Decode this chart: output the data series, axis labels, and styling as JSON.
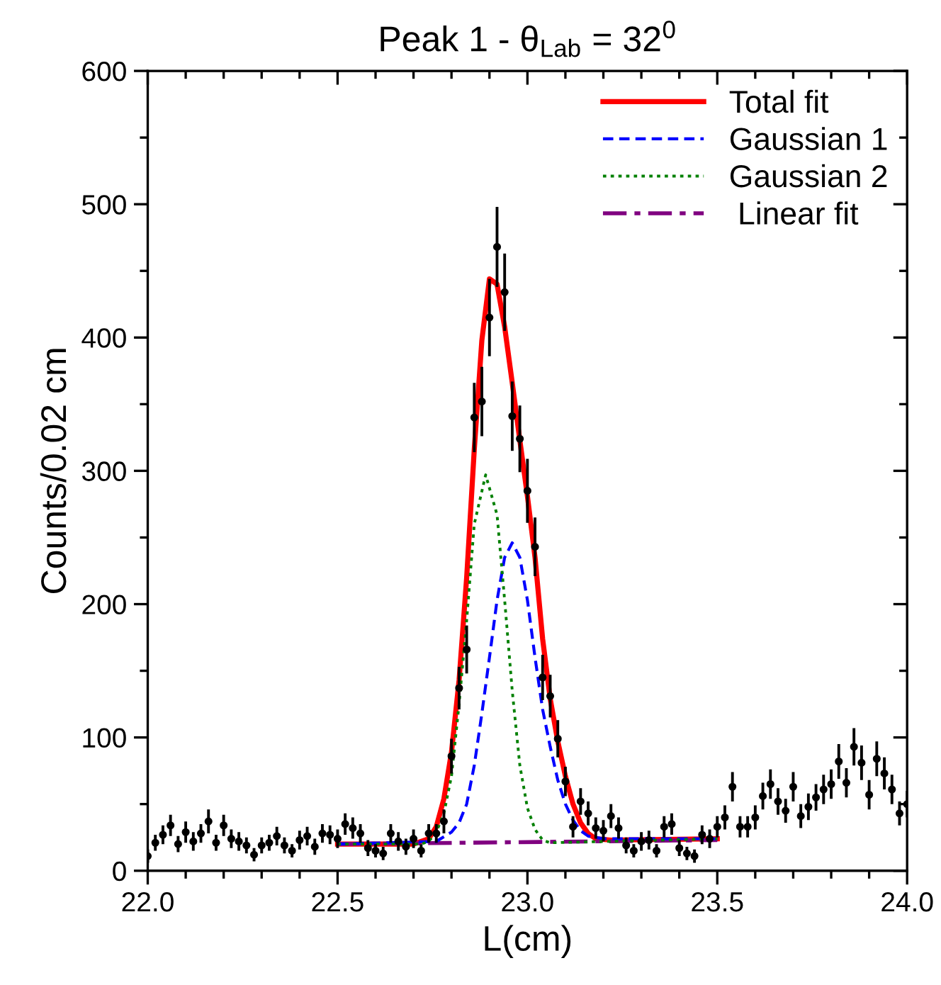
{
  "chart_data": {
    "type": "scatter",
    "title": "Peak 1 - θ$_{Lab}$ = 32$^{0}$",
    "xlabel": "L(cm)",
    "ylabel": "Counts/0.02 cm",
    "xlim": [
      22.0,
      24.0
    ],
    "ylim": [
      0,
      600
    ],
    "xticks": [
      {
        "value": 22.0,
        "label": "22.0"
      },
      {
        "value": 22.1,
        "label": null
      },
      {
        "value": 22.2,
        "label": null
      },
      {
        "value": 22.3,
        "label": null
      },
      {
        "value": 22.4,
        "label": null
      },
      22.5,
      {
        "value": 22.6,
        "label": null
      },
      {
        "value": 22.7,
        "label": null
      },
      {
        "value": 22.8,
        "label": null
      },
      {
        "value": 22.9,
        "label": null
      },
      {
        "value": 23.0,
        "label": "23.0"
      },
      {
        "value": 23.1,
        "label": null
      },
      {
        "value": 23.2,
        "label": null
      },
      {
        "value": 23.3,
        "label": null
      },
      {
        "value": 23.4,
        "label": null
      },
      23.5,
      {
        "value": 23.6,
        "label": null
      },
      {
        "value": 23.7,
        "label": null
      },
      {
        "value": 23.8,
        "label": null
      },
      {
        "value": 23.9,
        "label": null
      },
      {
        "value": 24.0,
        "label": "24.0"
      }
    ],
    "yticks": [
      0,
      {
        "value": 50,
        "label": null
      },
      100,
      {
        "value": 150,
        "label": null
      },
      200,
      {
        "value": 250,
        "label": null
      },
      300,
      {
        "value": 350,
        "label": null
      },
      400,
      {
        "value": 450,
        "label": null
      },
      500,
      {
        "value": 550,
        "label": null
      },
      600
    ],
    "grid": false,
    "legend": "top right",
    "series": [
      {
        "color": "#000000",
        "marker": "circle",
        "x": [
          22.0,
          22.02,
          22.04,
          22.06,
          22.08,
          22.1,
          22.12,
          22.14,
          22.16,
          22.18,
          22.2,
          22.22,
          22.24,
          22.26,
          22.28,
          22.3,
          22.32,
          22.34,
          22.36,
          22.38,
          22.4,
          22.42,
          22.44,
          22.46,
          22.48,
          22.5,
          22.52,
          22.54,
          22.56,
          22.58,
          22.6,
          22.62,
          22.64,
          22.66,
          22.68,
          22.7,
          22.72,
          22.74,
          22.76,
          22.78,
          22.8,
          22.82,
          22.84,
          22.86,
          22.88,
          22.9,
          22.92,
          22.94,
          22.96,
          22.98,
          23.0,
          23.02,
          23.04,
          23.06,
          23.08,
          23.1,
          23.12,
          23.14,
          23.16,
          23.18,
          23.2,
          23.22,
          23.24,
          23.26,
          23.28,
          23.3,
          23.32,
          23.34,
          23.36,
          23.38,
          23.4,
          23.42,
          23.44,
          23.46,
          23.48,
          23.5,
          23.52,
          23.54,
          23.56,
          23.58,
          23.6,
          23.62,
          23.64,
          23.66,
          23.68,
          23.7,
          23.72,
          23.74,
          23.76,
          23.78,
          23.8,
          23.82,
          23.84,
          23.86,
          23.88,
          23.9,
          23.92,
          23.94,
          23.96,
          23.98,
          24.0
        ],
        "values": [
          11,
          21,
          27,
          34,
          20,
          29,
          22,
          28,
          37,
          21,
          34,
          24,
          22,
          19,
          12,
          19,
          21,
          26,
          19,
          15,
          23,
          26,
          18,
          28,
          27,
          24,
          35,
          32,
          28,
          17,
          15,
          13,
          28,
          22,
          18,
          24,
          15,
          28,
          28,
          37,
          86,
          137,
          166,
          340,
          352,
          415,
          468,
          434,
          341,
          324,
          285,
          243,
          145,
          131,
          99,
          67,
          33,
          52,
          43,
          32,
          30,
          41,
          32,
          19,
          15,
          22,
          23,
          15,
          33,
          35,
          17,
          13,
          11,
          27,
          24,
          33,
          40,
          63,
          33,
          33,
          40,
          56,
          65,
          52,
          45,
          63,
          41,
          48,
          55,
          61,
          65,
          82,
          66,
          93,
          81,
          57,
          84,
          73,
          61,
          43,
          50
        ],
        "errors": [
          5,
          6,
          7,
          8,
          6,
          8,
          7,
          7,
          9,
          6,
          8,
          7,
          7,
          6,
          5,
          6,
          6,
          7,
          6,
          5,
          7,
          7,
          6,
          7,
          7,
          7,
          8,
          8,
          7,
          6,
          5,
          5,
          7,
          7,
          6,
          7,
          5,
          7,
          7,
          9,
          13,
          16,
          18,
          26,
          26,
          29,
          30,
          29,
          26,
          25,
          24,
          22,
          17,
          16,
          14,
          11,
          8,
          10,
          9,
          8,
          8,
          9,
          8,
          6,
          5,
          7,
          7,
          5,
          8,
          8,
          6,
          5,
          5,
          7,
          7,
          8,
          9,
          11,
          8,
          8,
          9,
          10,
          11,
          10,
          9,
          11,
          9,
          10,
          10,
          11,
          11,
          13,
          11,
          14,
          13,
          11,
          13,
          12,
          11,
          9,
          10
        ]
      },
      {
        "type": "line",
        "name": "Total fit",
        "color": "#ff0000",
        "line_style": "solid",
        "x": [
          22.5,
          22.7,
          22.74,
          22.76,
          22.78,
          22.8,
          22.82,
          22.84,
          22.86,
          22.88,
          22.9,
          22.92,
          22.94,
          22.96,
          22.98,
          23.0,
          23.02,
          23.04,
          23.06,
          23.08,
          23.1,
          23.12,
          23.14,
          23.16,
          23.18,
          23.22,
          23.5
        ],
        "values": [
          20,
          20,
          24,
          33,
          54,
          89,
          143,
          220,
          316,
          398,
          444,
          440,
          408,
          366,
          323,
          281,
          235,
          174,
          129,
          97,
          71,
          50,
          36,
          28,
          24,
          23,
          24
        ]
      },
      {
        "type": "line",
        "name": "Gaussian 1",
        "color": "#0000ff",
        "line_style": "dashed",
        "x": [
          22.5,
          22.76,
          22.8,
          22.82,
          22.84,
          22.86,
          22.88,
          22.9,
          22.92,
          22.94,
          22.96,
          22.98,
          23.0,
          23.02,
          23.04,
          23.06,
          23.08,
          23.1,
          23.12,
          23.14,
          23.16,
          23.2,
          23.5
        ],
        "values": [
          20,
          22,
          29,
          36,
          50,
          79,
          118,
          160,
          203,
          235,
          246,
          235,
          203,
          160,
          121,
          93,
          68,
          50,
          38,
          30,
          26,
          24,
          24
        ]
      },
      {
        "type": "line",
        "name": "Gaussian 2",
        "color": "#008000",
        "line_style": "dotted",
        "x": [
          22.5,
          22.72,
          22.74,
          22.76,
          22.78,
          22.8,
          22.82,
          22.84,
          22.86,
          22.89,
          22.92,
          22.94,
          22.96,
          22.98,
          23.0,
          23.02,
          23.04,
          23.06,
          23.5
        ],
        "values": [
          20,
          20,
          22,
          29,
          43,
          71,
          125,
          188,
          260,
          297,
          267,
          203,
          135,
          79,
          47,
          31,
          23,
          21,
          24
        ]
      },
      {
        "type": "line",
        "name": " Linear fit",
        "color": "#800080",
        "line_style": "dashdot",
        "x": [
          22.5,
          23.5
        ],
        "values": [
          20,
          23
        ]
      }
    ]
  }
}
